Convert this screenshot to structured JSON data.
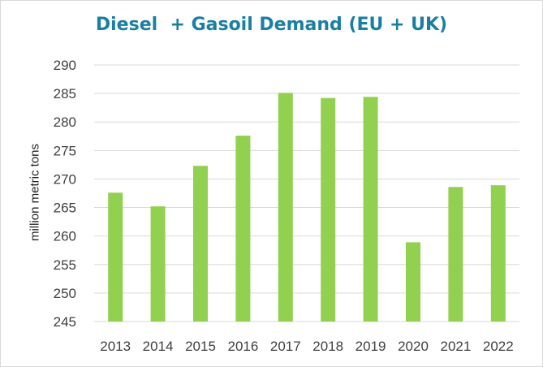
{
  "chart_data": {
    "type": "bar",
    "title": "Diesel  + Gasoil Demand (EU + UK)",
    "xlabel": "",
    "ylabel": "million metric tons",
    "categories": [
      "2013",
      "2014",
      "2015",
      "2016",
      "2017",
      "2018",
      "2019",
      "2020",
      "2021",
      "2022"
    ],
    "values": [
      267.6,
      265.2,
      272.3,
      277.6,
      285.1,
      284.2,
      284.4,
      258.9,
      268.6,
      268.9
    ],
    "ylim": [
      245,
      290
    ],
    "yticks": [
      "245",
      "250",
      "255",
      "260",
      "265",
      "270",
      "275",
      "280",
      "285",
      "290"
    ],
    "grid": true,
    "legend": "none",
    "colors": {
      "bar": "#92d050",
      "grid": "#d9d9d9",
      "title": "#1a7fa3"
    }
  }
}
